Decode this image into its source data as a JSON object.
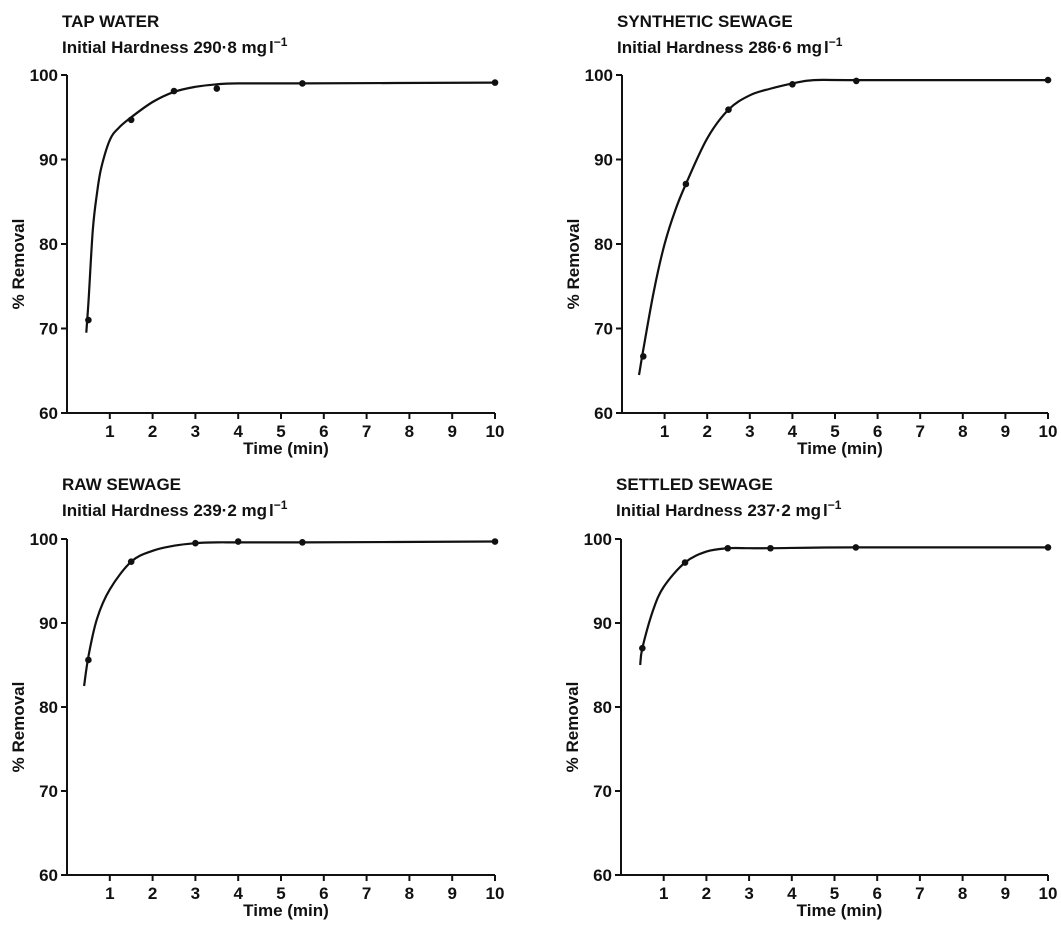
{
  "chart_data": [
    {
      "type": "line",
      "title": "TAP WATER",
      "subtitle": "Initial Hardness 290·8 mg",
      "subtitle_unit": "l",
      "subtitle_exp": "−1",
      "xlabel": "Time (min)",
      "ylabel": "% Removal",
      "xlim": [
        0,
        10
      ],
      "ylim": [
        60,
        100
      ],
      "xticks": [
        "1",
        "2",
        "3",
        "4",
        "5",
        "6",
        "7",
        "8",
        "9",
        "10"
      ],
      "yticks": [
        "60",
        "70",
        "80",
        "90",
        "100"
      ],
      "series": [
        {
          "x": [
            0.5,
            1.5,
            2.5,
            3.5,
            5.5,
            10
          ],
          "y": [
            71.0,
            94.7,
            98.1,
            98.4,
            99.0,
            99.1
          ]
        }
      ],
      "curve": {
        "x": [
          0.45,
          0.5,
          0.6,
          0.7,
          0.8,
          1.0,
          1.2,
          1.5,
          2.0,
          2.5,
          3.0,
          3.5,
          4.0,
          5.5,
          10
        ],
        "y": [
          69.5,
          73.0,
          81.5,
          86.0,
          89.0,
          92.3,
          93.7,
          95.0,
          96.8,
          98.0,
          98.6,
          98.9,
          99.0,
          99.0,
          99.1
        ]
      }
    },
    {
      "type": "line",
      "title": "SYNTHETIC SEWAGE",
      "subtitle": "Initial Hardness 286·6 mg",
      "subtitle_unit": "l",
      "subtitle_exp": "−1",
      "xlabel": "Time (min)",
      "ylabel": "% Removal",
      "xlim": [
        0,
        10
      ],
      "ylim": [
        60,
        100
      ],
      "xticks": [
        "1",
        "2",
        "3",
        "4",
        "5",
        "6",
        "7",
        "8",
        "9",
        "10"
      ],
      "yticks": [
        "60",
        "70",
        "80",
        "90",
        "100"
      ],
      "series": [
        {
          "x": [
            0.5,
            1.5,
            2.5,
            4.0,
            5.5,
            10
          ],
          "y": [
            66.7,
            87.1,
            95.9,
            98.9,
            99.3,
            99.4
          ]
        }
      ],
      "curve": {
        "x": [
          0.4,
          0.5,
          0.75,
          1.0,
          1.25,
          1.5,
          2.0,
          2.5,
          3.0,
          3.5,
          4.0,
          4.5,
          5.5,
          10
        ],
        "y": [
          64.5,
          67.5,
          74.5,
          80.0,
          84.0,
          87.1,
          92.5,
          95.9,
          97.6,
          98.4,
          99.0,
          99.4,
          99.4,
          99.4
        ]
      }
    },
    {
      "type": "line",
      "title": "RAW SEWAGE",
      "subtitle": "Initial Hardness 239·2 mg",
      "subtitle_unit": "l",
      "subtitle_exp": "−1",
      "xlabel": "Time (min)",
      "ylabel": "% Removal",
      "xlim": [
        0,
        10
      ],
      "ylim": [
        60,
        100
      ],
      "xticks": [
        "1",
        "2",
        "3",
        "4",
        "5",
        "6",
        "7",
        "8",
        "9",
        "10"
      ],
      "yticks": [
        "60",
        "70",
        "80",
        "90",
        "100"
      ],
      "series": [
        {
          "x": [
            0.5,
            1.5,
            3.0,
            4.0,
            5.5,
            10
          ],
          "y": [
            85.6,
            97.3,
            99.5,
            99.7,
            99.6,
            99.7
          ]
        }
      ],
      "curve": {
        "x": [
          0.4,
          0.5,
          0.7,
          1.0,
          1.5,
          2.0,
          2.5,
          3.0,
          3.5,
          4.0,
          5.5,
          10
        ],
        "y": [
          82.5,
          86.0,
          90.5,
          94.0,
          97.3,
          98.6,
          99.2,
          99.5,
          99.6,
          99.6,
          99.6,
          99.7
        ]
      }
    },
    {
      "type": "line",
      "title": "SETTLED SEWAGE",
      "subtitle": "Initial Hardness 237·2 mg",
      "subtitle_unit": "l",
      "subtitle_exp": "−1",
      "xlabel": "Time (min)",
      "ylabel": "% Removal",
      "xlim": [
        0,
        10
      ],
      "ylim": [
        60,
        100
      ],
      "xticks": [
        "1",
        "2",
        "3",
        "4",
        "5",
        "6",
        "7",
        "8",
        "9",
        "10"
      ],
      "yticks": [
        "60",
        "70",
        "80",
        "90",
        "100"
      ],
      "series": [
        {
          "x": [
            0.5,
            1.5,
            2.5,
            3.5,
            5.5,
            10
          ],
          "y": [
            87.0,
            97.2,
            98.9,
            98.9,
            99.0,
            99.0
          ]
        }
      ],
      "curve": {
        "x": [
          0.45,
          0.5,
          0.75,
          1.0,
          1.5,
          2.0,
          2.5,
          3.0,
          3.5,
          5.5,
          10
        ],
        "y": [
          85.0,
          87.0,
          91.5,
          94.3,
          97.2,
          98.5,
          98.9,
          98.9,
          98.9,
          99.0,
          99.0
        ]
      }
    }
  ]
}
